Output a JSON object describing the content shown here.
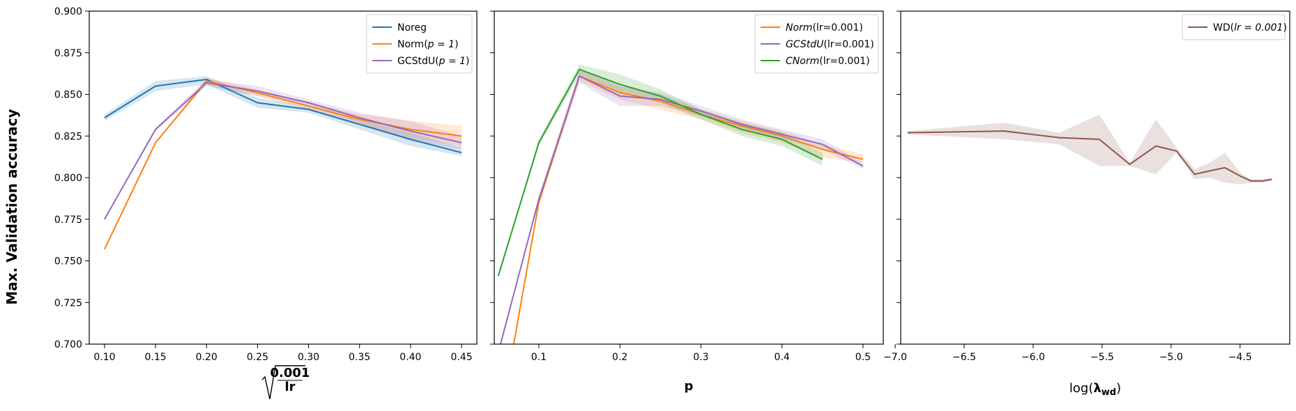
{
  "ylabel": "Max. Validation accuracy",
  "chart_data": [
    {
      "type": "line",
      "xlabel_parts": {
        "numerator": "0.001",
        "denominator": "lr"
      },
      "xlim": [
        0.085,
        0.465
      ],
      "ylim": [
        0.7,
        0.9
      ],
      "xticks": [
        0.1,
        0.15,
        0.2,
        0.25,
        0.3,
        0.35,
        0.4,
        0.45
      ],
      "xtick_labels": [
        "0.10",
        "0.15",
        "0.20",
        "0.25",
        "0.30",
        "0.35",
        "0.40",
        "0.45"
      ],
      "yticks": [
        0.7,
        0.725,
        0.75,
        0.775,
        0.8,
        0.825,
        0.85,
        0.875,
        0.9
      ],
      "ytick_labels": [
        "0.700",
        "0.725",
        "0.750",
        "0.775",
        "0.800",
        "0.825",
        "0.850",
        "0.875",
        "0.900"
      ],
      "legend": {
        "position": "top-right"
      },
      "series": [
        {
          "name": "Noreg",
          "color": "#1f77b4",
          "x": [
            0.1,
            0.15,
            0.2,
            0.25,
            0.3,
            0.35,
            0.4,
            0.45
          ],
          "y": [
            0.836,
            0.855,
            0.859,
            0.845,
            0.841,
            0.832,
            0.823,
            0.815
          ],
          "lower": [
            0.834,
            0.852,
            0.856,
            0.842,
            0.839,
            0.829,
            0.819,
            0.813
          ],
          "upper": [
            0.838,
            0.858,
            0.861,
            0.848,
            0.843,
            0.835,
            0.827,
            0.818
          ]
        },
        {
          "name": "Norm",
          "param": "p = 1",
          "color": "#ff7f0e",
          "x": [
            0.1,
            0.15,
            0.2,
            0.25,
            0.3,
            0.35,
            0.4,
            0.45
          ],
          "y": [
            0.757,
            0.821,
            0.858,
            0.851,
            0.843,
            0.835,
            0.829,
            0.825
          ],
          "lower": [
            0.757,
            0.821,
            0.856,
            0.849,
            0.841,
            0.832,
            0.824,
            0.819
          ],
          "upper": [
            0.757,
            0.821,
            0.86,
            0.853,
            0.845,
            0.838,
            0.834,
            0.831
          ]
        },
        {
          "name": "GCStdU",
          "param": "p = 1",
          "color": "#9467bd",
          "x": [
            0.1,
            0.15,
            0.2,
            0.25,
            0.3,
            0.35,
            0.4,
            0.45
          ],
          "y": [
            0.775,
            0.829,
            0.857,
            0.852,
            0.845,
            0.836,
            0.828,
            0.821
          ],
          "lower": [
            0.775,
            0.828,
            0.855,
            0.849,
            0.843,
            0.833,
            0.822,
            0.817
          ],
          "upper": [
            0.775,
            0.83,
            0.859,
            0.855,
            0.847,
            0.839,
            0.834,
            0.825
          ]
        }
      ]
    },
    {
      "type": "line",
      "xlabel": "p",
      "xlim": [
        0.045,
        0.525
      ],
      "ylim": [
        0.7,
        0.9
      ],
      "xticks": [
        0.1,
        0.2,
        0.3,
        0.4,
        0.5
      ],
      "xtick_labels": [
        "0.1",
        "0.2",
        "0.3",
        "0.4",
        "0.5"
      ],
      "legend": {
        "position": "top-right"
      },
      "series": [
        {
          "name": "Norm",
          "param": "lr=0.001",
          "color": "#ff7f0e",
          "x": [
            0.05,
            0.1,
            0.15,
            0.2,
            0.25,
            0.3,
            0.35,
            0.4,
            0.45,
            0.5
          ],
          "y": [
            0.648,
            0.785,
            0.861,
            0.851,
            0.846,
            0.838,
            0.831,
            0.825,
            0.817,
            0.811
          ],
          "lower": [
            0.648,
            0.784,
            0.858,
            0.847,
            0.841,
            0.835,
            0.827,
            0.821,
            0.812,
            0.809
          ],
          "upper": [
            0.648,
            0.786,
            0.864,
            0.855,
            0.85,
            0.841,
            0.834,
            0.828,
            0.82,
            0.814
          ]
        },
        {
          "name": "GCStdU",
          "param": "lr=0.001",
          "color": "#9467bd",
          "x": [
            0.05,
            0.1,
            0.15,
            0.2,
            0.25,
            0.3,
            0.35,
            0.4,
            0.45,
            0.5
          ],
          "y": [
            0.695,
            0.787,
            0.861,
            0.849,
            0.847,
            0.84,
            0.832,
            0.826,
            0.82,
            0.807
          ],
          "lower": [
            0.695,
            0.785,
            0.857,
            0.843,
            0.843,
            0.837,
            0.829,
            0.823,
            0.817,
            0.805
          ],
          "upper": [
            0.695,
            0.789,
            0.865,
            0.855,
            0.851,
            0.843,
            0.835,
            0.829,
            0.823,
            0.809
          ]
        },
        {
          "name": "CNorm",
          "param": "lr=0.001",
          "color": "#2ca02c",
          "x": [
            0.05,
            0.1,
            0.15,
            0.2,
            0.25,
            0.3,
            0.35,
            0.4,
            0.45
          ],
          "y": [
            0.741,
            0.821,
            0.865,
            0.856,
            0.849,
            0.838,
            0.829,
            0.823,
            0.811
          ],
          "lower": [
            0.741,
            0.819,
            0.862,
            0.851,
            0.845,
            0.835,
            0.825,
            0.819,
            0.807
          ],
          "upper": [
            0.741,
            0.823,
            0.868,
            0.862,
            0.853,
            0.841,
            0.833,
            0.827,
            0.815
          ]
        }
      ]
    },
    {
      "type": "line",
      "xlabel_parts": {
        "text": "log(",
        "sym": "λ",
        "sub": "wd",
        "close": ")"
      },
      "xlim": [
        -6.96,
        -4.14
      ],
      "ylim": [
        0.7,
        0.9
      ],
      "xticks": [
        -7.0,
        -6.5,
        -6.0,
        -5.5,
        -5.0,
        -4.5
      ],
      "xtick_labels": [
        "−7.0",
        "−6.5",
        "−6.0",
        "−5.5",
        "−5.0",
        "−4.5"
      ],
      "legend": {
        "position": "top-right"
      },
      "series": [
        {
          "name": "WD",
          "param": "lr = 0.001",
          "color": "#8c564b",
          "x": [
            -6.91,
            -6.21,
            -5.81,
            -5.52,
            -5.3,
            -5.11,
            -4.96,
            -4.83,
            -4.72,
            -4.61,
            -4.5,
            -4.42,
            -4.34,
            -4.27
          ],
          "y": [
            0.827,
            0.828,
            0.824,
            0.823,
            0.808,
            0.819,
            0.816,
            0.802,
            0.804,
            0.806,
            0.801,
            0.798,
            0.798,
            0.799
          ],
          "lower": [
            0.826,
            0.823,
            0.82,
            0.807,
            0.807,
            0.802,
            0.815,
            0.799,
            0.8,
            0.797,
            0.796,
            0.797,
            0.797,
            0.798
          ],
          "upper": [
            0.828,
            0.833,
            0.827,
            0.838,
            0.809,
            0.835,
            0.818,
            0.805,
            0.809,
            0.815,
            0.803,
            0.799,
            0.799,
            0.8
          ]
        }
      ]
    }
  ]
}
